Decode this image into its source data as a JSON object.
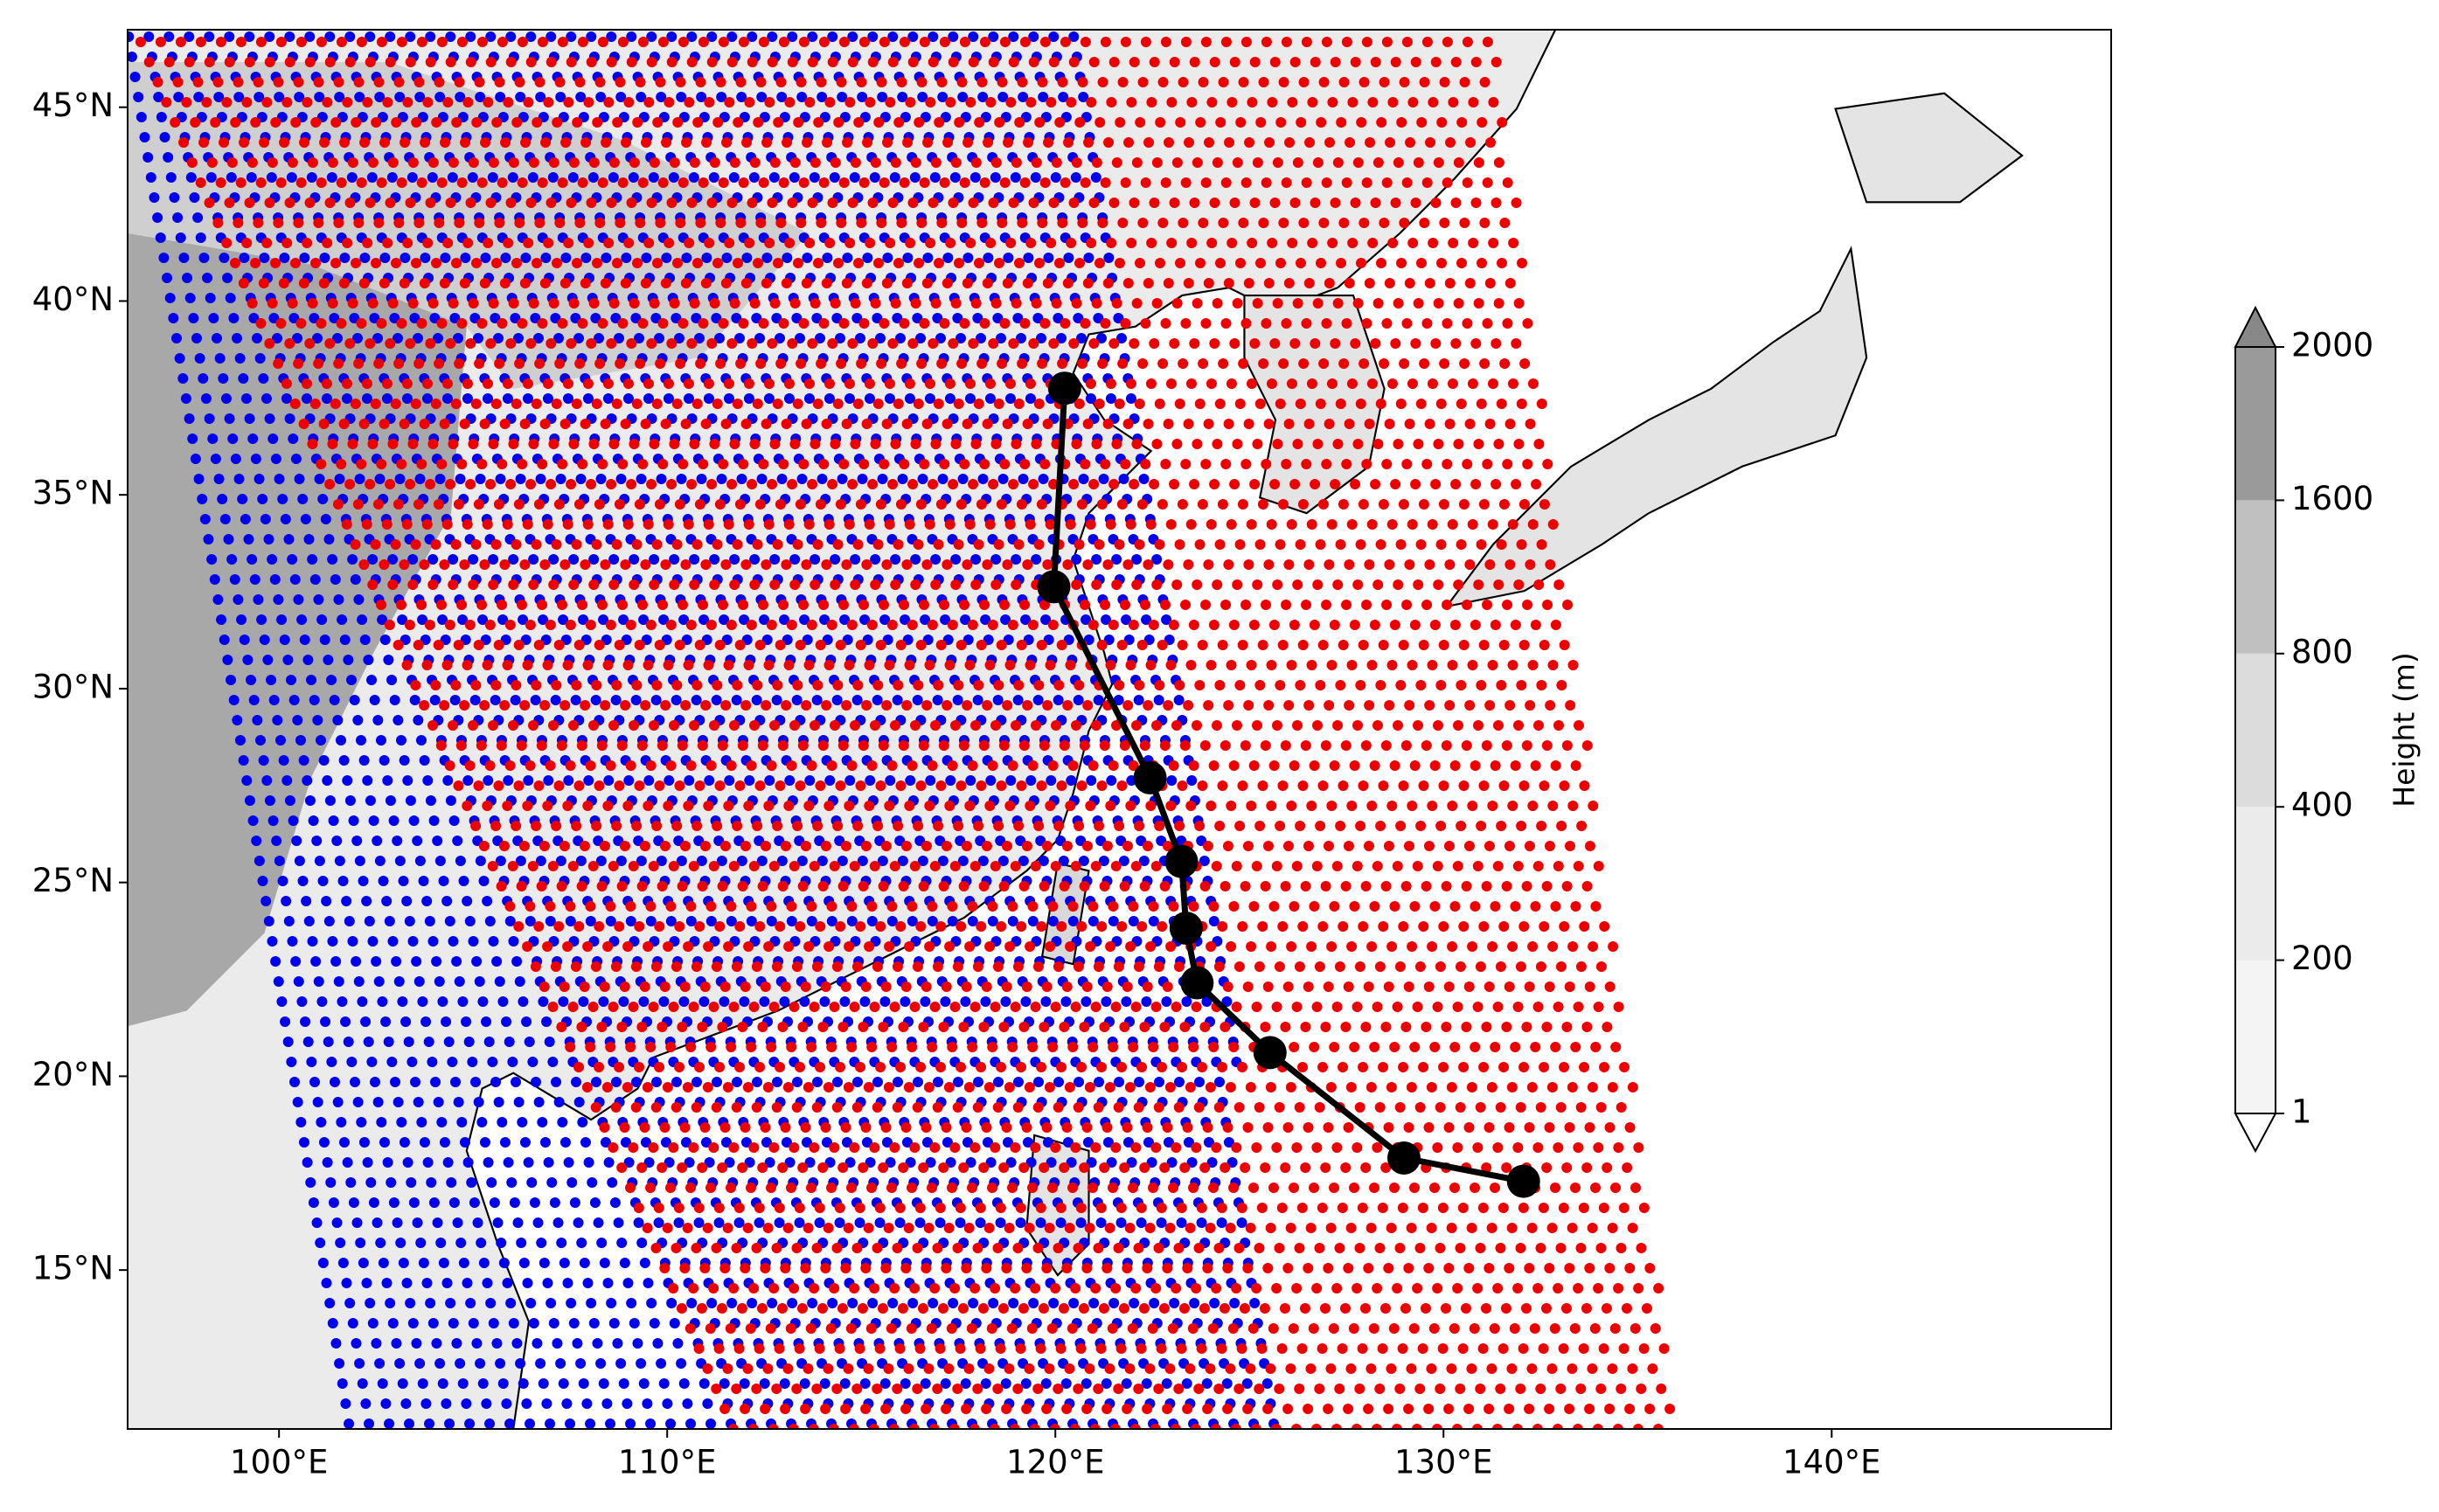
{
  "chart_data": {
    "type": "map",
    "xlim": [
      96.1,
      147.2
    ],
    "ylim": [
      10.9,
      47.0
    ],
    "xticks": [
      {
        "value": 100,
        "label": "100°E"
      },
      {
        "value": 110,
        "label": "110°E"
      },
      {
        "value": 120,
        "label": "120°E"
      },
      {
        "value": 130,
        "label": "130°E"
      },
      {
        "value": 140,
        "label": "140°E"
      }
    ],
    "yticks": [
      {
        "value": 15,
        "label": "15°N"
      },
      {
        "value": 20,
        "label": "20°N"
      },
      {
        "value": 25,
        "label": "25°N"
      },
      {
        "value": 30,
        "label": "30°N"
      },
      {
        "value": 35,
        "label": "35°N"
      },
      {
        "value": 40,
        "label": "40°N"
      },
      {
        "value": 45,
        "label": "45°N"
      }
    ],
    "series": [
      {
        "color": "#000000",
        "x": [
          132.06,
          128.98,
          125.53,
          123.65,
          123.37,
          123.25,
          122.44,
          119.96,
          120.24
        ],
        "values": [
          17.29,
          17.89,
          20.61,
          22.41,
          23.82,
          25.54,
          27.7,
          32.63,
          37.75
        ]
      }
    ],
    "colorbar": {
      "label": "Height (m)",
      "ticks": [
        1,
        200,
        400,
        800,
        1600,
        2000
      ],
      "colors": [
        "#f4f4f4",
        "#ebebeb",
        "#dcdcdc",
        "#c0c0c0",
        "#9a9a9a"
      ],
      "under_color": "#ffffff",
      "over_color": "#888888"
    }
  }
}
